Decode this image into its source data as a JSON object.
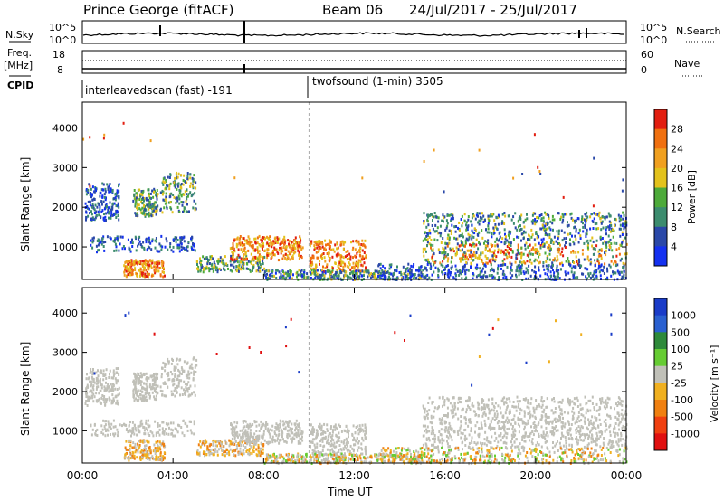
{
  "header": {
    "station": "Prince George (fitACF)",
    "beam": "Beam 06",
    "dates": "24/Jul/2017 - 25/Jul/2017"
  },
  "strip": {
    "nsky_label": "N.Sky",
    "nsky_ticks_left": [
      "10^5",
      "10^0"
    ],
    "nsky_ticks_right": [
      "10^5",
      "10^0"
    ],
    "nsearch_label": "N.Search",
    "freq_label": "Freq.",
    "freq_unit": "[MHz]",
    "freq_ticks": [
      "18",
      "8"
    ],
    "nave_label": "Nave",
    "nave_ticks": [
      "60",
      "0"
    ],
    "cpid_label": "CPID",
    "cpid_1": "interleavedscan (fast) -191",
    "cpid_2": "twofsound (1-min) 3505"
  },
  "chart_data": [
    {
      "type": "heatmap",
      "panel": "power",
      "ylabel": "Slant Range [km]",
      "yticks": [
        "1000",
        "2000",
        "3000",
        "4000"
      ],
      "ylim": [
        180,
        4650
      ],
      "xlim": [
        0,
        24
      ],
      "colorbar_label": "Power [dB]",
      "colorbar_ticks": [
        "4",
        "8",
        "12",
        "16",
        "20",
        "24",
        "28"
      ],
      "colors": [
        "#1431f0",
        "#2a48a8",
        "#3c8c6e",
        "#4daa3a",
        "#e3c21c",
        "#f0a020",
        "#f07010",
        "#e21e10"
      ]
    },
    {
      "type": "heatmap",
      "panel": "velocity",
      "ylabel": "Slant Range [km]",
      "yticks": [
        "1000",
        "2000",
        "3000",
        "4000"
      ],
      "ylim": [
        180,
        4650
      ],
      "xlim": [
        0,
        24
      ],
      "xlabel": "Time UT",
      "xticks": [
        "00:00",
        "04:00",
        "08:00",
        "12:00",
        "16:00",
        "20:00",
        "00:00"
      ],
      "colorbar_label": "Velocity [m s⁻¹]",
      "colorbar_ticks": [
        "1000",
        "500",
        "100",
        "25",
        "-25",
        "-100",
        "-500",
        "-1000"
      ],
      "colors": [
        "#1a3cc8",
        "#2a60d0",
        "#2e8a3a",
        "#66cc33",
        "#c0c0b8",
        "#f0b020",
        "#f08010",
        "#f04010",
        "#e01010"
      ]
    }
  ]
}
